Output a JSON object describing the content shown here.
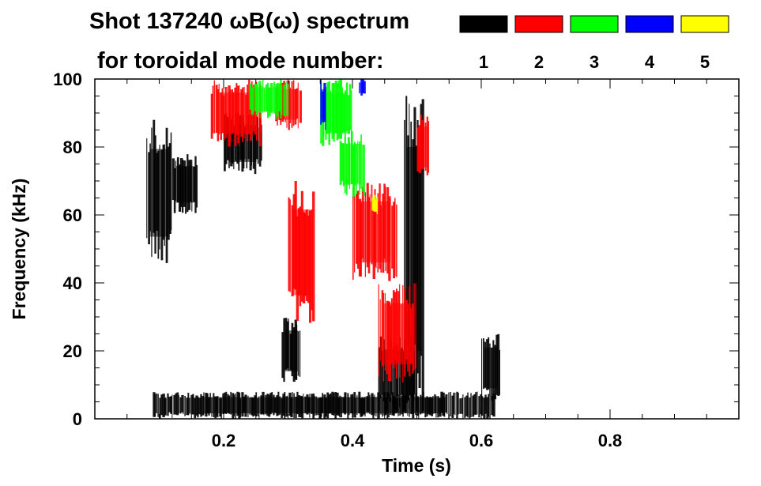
{
  "chart_data": {
    "type": "heatmap",
    "title_line1": "Shot 137240 ωB(ω) spectrum",
    "title_line2": "for toroidal mode number:",
    "xlabel": "Time (s)",
    "ylabel": "Frequency (kHz)",
    "xlim": [
      0.0,
      1.0
    ],
    "ylim": [
      0,
      100
    ],
    "xticks": [
      {
        "value": 0.2,
        "label": "0.2"
      },
      {
        "value": 0.4,
        "label": "0.4"
      },
      {
        "value": 0.6,
        "label": "0.6"
      },
      {
        "value": 0.8,
        "label": "0.8"
      }
    ],
    "yticks": [
      {
        "value": 0,
        "label": "0"
      },
      {
        "value": 20,
        "label": "20"
      },
      {
        "value": 40,
        "label": "40"
      },
      {
        "value": 60,
        "label": "60"
      },
      {
        "value": 80,
        "label": "80"
      },
      {
        "value": 100,
        "label": "100"
      }
    ],
    "legend": [
      {
        "label": "1",
        "color": "#000000"
      },
      {
        "label": "2",
        "color": "#ff0000"
      },
      {
        "label": "3",
        "color": "#00ff00"
      },
      {
        "label": "4",
        "color": "#0000ff"
      },
      {
        "label": "5",
        "color": "#ffff00"
      }
    ],
    "regions": [
      {
        "mode": 1,
        "t": [
          0.08,
          0.12
        ],
        "f": [
          45,
          88
        ]
      },
      {
        "mode": 1,
        "t": [
          0.12,
          0.16
        ],
        "f": [
          60,
          78
        ]
      },
      {
        "mode": 1,
        "t": [
          0.2,
          0.26
        ],
        "f": [
          72,
          90
        ]
      },
      {
        "mode": 1,
        "t": [
          0.29,
          0.32
        ],
        "f": [
          10,
          30
        ]
      },
      {
        "mode": 1,
        "t": [
          0.44,
          0.5
        ],
        "f": [
          2,
          25
        ]
      },
      {
        "mode": 1,
        "t": [
          0.48,
          0.51
        ],
        "f": [
          0,
          100
        ]
      },
      {
        "mode": 1,
        "t": [
          0.6,
          0.63
        ],
        "f": [
          5,
          25
        ]
      },
      {
        "mode": 1,
        "t": [
          0.09,
          0.62
        ],
        "f": [
          0,
          8
        ]
      },
      {
        "mode": 2,
        "t": [
          0.18,
          0.26
        ],
        "f": [
          80,
          100
        ]
      },
      {
        "mode": 2,
        "t": [
          0.28,
          0.32
        ],
        "f": [
          85,
          100
        ]
      },
      {
        "mode": 2,
        "t": [
          0.3,
          0.34
        ],
        "f": [
          28,
          70
        ]
      },
      {
        "mode": 2,
        "t": [
          0.4,
          0.47
        ],
        "f": [
          40,
          70
        ]
      },
      {
        "mode": 2,
        "t": [
          0.44,
          0.5
        ],
        "f": [
          10,
          40
        ]
      },
      {
        "mode": 2,
        "t": [
          0.5,
          0.52
        ],
        "f": [
          70,
          90
        ]
      },
      {
        "mode": 3,
        "t": [
          0.38,
          0.42
        ],
        "f": [
          65,
          85
        ]
      },
      {
        "mode": 3,
        "t": [
          0.24,
          0.3
        ],
        "f": [
          88,
          100
        ]
      },
      {
        "mode": 3,
        "t": [
          0.35,
          0.4
        ],
        "f": [
          80,
          100
        ]
      },
      {
        "mode": 4,
        "t": [
          0.35,
          0.36
        ],
        "f": [
          85,
          100
        ]
      },
      {
        "mode": 4,
        "t": [
          0.41,
          0.42
        ],
        "f": [
          95,
          100
        ]
      },
      {
        "mode": 5,
        "t": [
          0.43,
          0.44
        ],
        "f": [
          60,
          66
        ]
      }
    ]
  }
}
